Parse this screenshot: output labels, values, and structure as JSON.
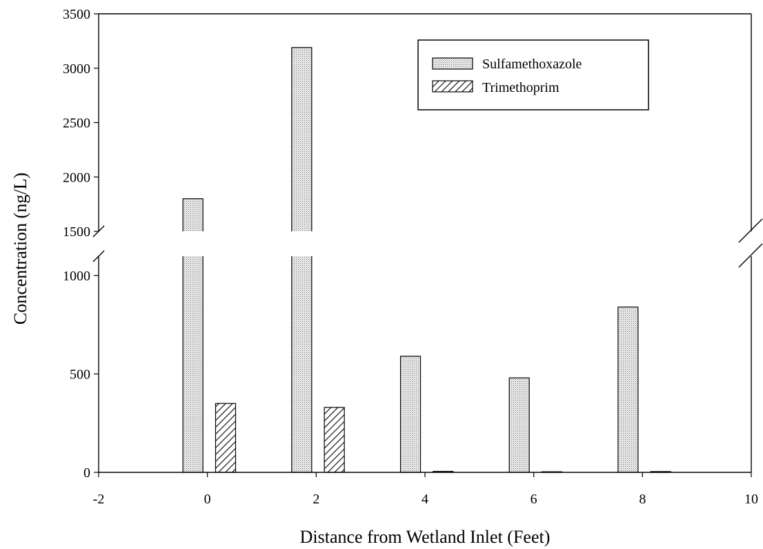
{
  "chart_data": {
    "type": "bar",
    "title": "",
    "xlabel": "Distance from Wetland Inlet (Feet)",
    "ylabel": "Concentration (ng/L)",
    "x_ticks": [
      -2,
      0,
      2,
      4,
      6,
      8,
      10
    ],
    "xlim": [
      -2,
      10
    ],
    "x": [
      0,
      2,
      4,
      6,
      8
    ],
    "y_axis_break": {
      "lower_range": [
        0,
        1000
      ],
      "upper_range": [
        1500,
        3500
      ],
      "lower_ticks": [
        0,
        500,
        1000
      ],
      "upper_ticks": [
        1500,
        2000,
        2500,
        3000,
        3500
      ]
    },
    "series": [
      {
        "name": "Sulfamethoxazole",
        "x": [
          0,
          2,
          4,
          6,
          8
        ],
        "values": [
          1800,
          3190,
          590,
          480,
          840
        ],
        "pattern": "dotted"
      },
      {
        "name": "Trimethoprim",
        "x": [
          0,
          2,
          4,
          6,
          8
        ],
        "values": [
          350,
          330,
          5,
          3,
          4
        ],
        "pattern": "hatched"
      }
    ],
    "legend_position": "top-right",
    "grid": false
  }
}
